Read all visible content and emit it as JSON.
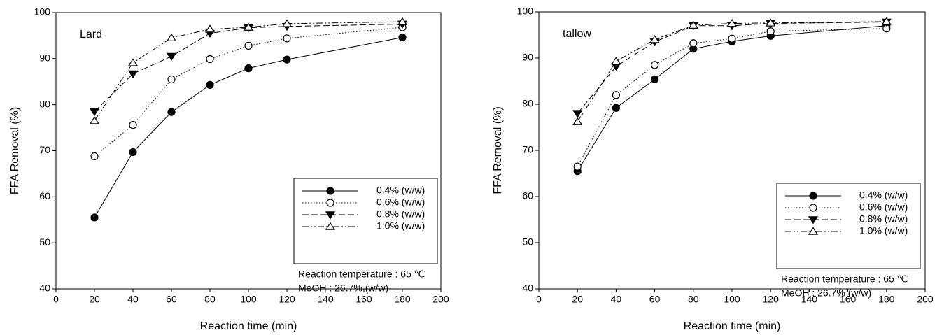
{
  "chart_data": [
    {
      "type": "line",
      "panel_label": "Lard",
      "x_label": "Reaction time (min)",
      "y_label": "FFA Removal (%)",
      "x": [
        20,
        40,
        60,
        80,
        100,
        120,
        180
      ],
      "xlim": [
        0,
        200
      ],
      "xticks": [
        0,
        20,
        40,
        60,
        80,
        100,
        120,
        140,
        160,
        180,
        200
      ],
      "ylim": [
        40,
        100
      ],
      "yticks": [
        40,
        50,
        60,
        70,
        80,
        90,
        100
      ],
      "series": [
        {
          "name": "0.4% (w/w)",
          "color": "#000000",
          "marker": "circle-filled",
          "dash": "solid",
          "values": [
            55.5,
            69.7,
            78.4,
            84.3,
            87.9,
            89.8,
            94.6
          ]
        },
        {
          "name": "0.6% (w/w)",
          "color": "#000000",
          "marker": "circle-open",
          "dash": "dotted",
          "values": [
            68.8,
            75.6,
            85.5,
            89.9,
            92.8,
            94.4,
            96.8
          ]
        },
        {
          "name": "0.8% (w/w)",
          "color": "#000000",
          "marker": "triangle-down-filled",
          "dash": "dashed",
          "values": [
            78.5,
            86.7,
            90.5,
            95.5,
            96.7,
            97.0,
            97.5
          ]
        },
        {
          "name": "1.0% (w/w)",
          "color": "#000000",
          "marker": "triangle-up-open",
          "dash": "dash-dot-dot",
          "values": [
            76.5,
            89.1,
            94.5,
            96.4,
            96.8,
            97.6,
            98.0
          ]
        }
      ],
      "legend": "lower right",
      "notes": [
        "Reaction temperature : 65 ℃",
        "MeOH : 26.7% (w/w)"
      ]
    },
    {
      "type": "line",
      "panel_label": "tallow",
      "x_label": "Reaction time (min)",
      "y_label": "FFA Removal (%)",
      "x": [
        20,
        40,
        60,
        80,
        100,
        120,
        180
      ],
      "xlim": [
        0,
        200
      ],
      "xticks": [
        0,
        20,
        40,
        60,
        80,
        100,
        120,
        140,
        160,
        180,
        200
      ],
      "ylim": [
        40,
        100
      ],
      "yticks": [
        40,
        50,
        60,
        70,
        80,
        90,
        100
      ],
      "series": [
        {
          "name": "0.4% (w/w)",
          "color": "#000000",
          "marker": "circle-filled",
          "dash": "solid",
          "values": [
            65.5,
            79.2,
            85.4,
            92.0,
            93.6,
            94.8,
            97.0
          ]
        },
        {
          "name": "0.6% (w/w)",
          "color": "#000000",
          "marker": "circle-open",
          "dash": "dotted",
          "values": [
            66.5,
            82.0,
            88.5,
            93.2,
            94.2,
            95.8,
            96.4
          ]
        },
        {
          "name": "0.8% (w/w)",
          "color": "#000000",
          "marker": "triangle-down-filled",
          "dash": "dashed",
          "values": [
            78.0,
            88.2,
            93.5,
            97.0,
            97.0,
            97.5,
            97.8
          ]
        },
        {
          "name": "1.0% (w/w)",
          "color": "#000000",
          "marker": "triangle-up-open",
          "dash": "dash-dot-dot",
          "values": [
            76.2,
            89.3,
            94.0,
            97.1,
            97.5,
            97.6,
            97.9
          ]
        }
      ],
      "legend": "lower right",
      "notes": [
        "Reaction temperature : 65 ℃",
        "MeOH : 26.7% (w/w)"
      ]
    }
  ]
}
